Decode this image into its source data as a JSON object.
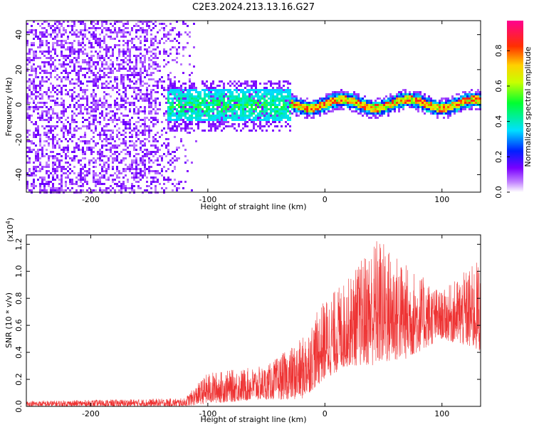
{
  "title": "C2E3.2024.213.13.16.G27",
  "chart_data": [
    {
      "type": "heatmap",
      "xlabel": "Height of straight line (km)",
      "ylabel": "Frequency (Hz)",
      "xlim": [
        -255,
        133
      ],
      "ylim": [
        -50,
        48
      ],
      "xticks": [
        -200,
        -100,
        0,
        100
      ],
      "yticks": [
        -40,
        -20,
        0,
        20,
        40
      ],
      "colorbar": {
        "label": "Normalized spectral amplitude",
        "range": [
          0.0,
          0.97
        ],
        "ticks": [
          0.0,
          0.2,
          0.4,
          0.6,
          0.8
        ],
        "colormap": "rainbow (white → purple → blue → cyan → green → yellow → orange → red → magenta)"
      },
      "regions": [
        {
          "x_range": [
            -255,
            -110
          ],
          "description_value": "broadband scatter",
          "amplitude": 0.1
        },
        {
          "x_range": [
            -130,
            -30
          ],
          "center_freq": 0,
          "half_width": 10,
          "amplitude": 0.4
        },
        {
          "x_range": [
            -30,
            133
          ],
          "center_freq": 1,
          "half_width": 4,
          "amplitude": 0.85
        }
      ]
    },
    {
      "type": "line",
      "xlabel": "Height of straight line (km)",
      "ylabel": "SNR (10 * v/v)",
      "yscale_label": "(x10",
      "yscale_exp": "4",
      "yscale_close": ")",
      "xlim": [
        -255,
        133
      ],
      "ylim": [
        0,
        1.27
      ],
      "xticks": [
        -200,
        -100,
        0,
        100
      ],
      "yticks": [
        0.0,
        0.2,
        0.4,
        0.6,
        0.8,
        1.0,
        1.2
      ],
      "color": "#ee3333",
      "envelope": [
        {
          "x": -255,
          "low": 0.0,
          "high": 0.04
        },
        {
          "x": -120,
          "low": 0.0,
          "high": 0.06
        },
        {
          "x": -100,
          "low": 0.02,
          "high": 0.25
        },
        {
          "x": -50,
          "low": 0.05,
          "high": 0.3
        },
        {
          "x": -20,
          "low": 0.05,
          "high": 0.5
        },
        {
          "x": 0,
          "low": 0.2,
          "high": 0.8
        },
        {
          "x": 20,
          "low": 0.3,
          "high": 0.95
        },
        {
          "x": 45,
          "low": 0.3,
          "high": 1.27
        },
        {
          "x": 70,
          "low": 0.35,
          "high": 1.05
        },
        {
          "x": 100,
          "low": 0.5,
          "high": 0.85
        },
        {
          "x": 133,
          "low": 0.4,
          "high": 1.1
        }
      ]
    }
  ]
}
